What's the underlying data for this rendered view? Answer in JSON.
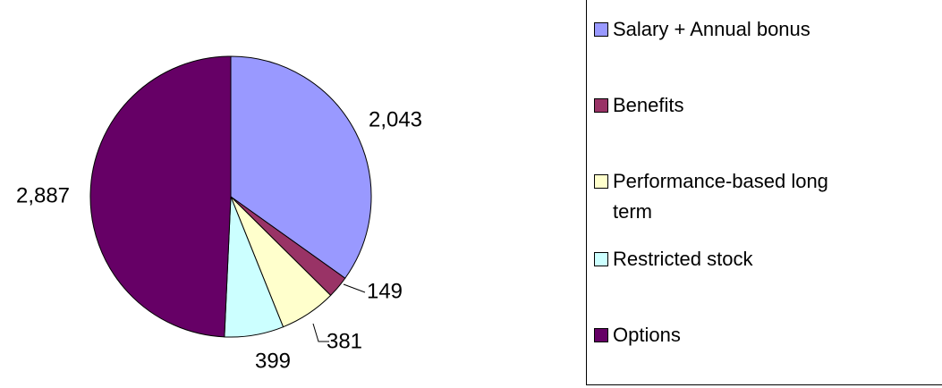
{
  "chart_data": {
    "type": "pie",
    "categories": [
      "Salary + Annual bonus",
      "Benefits",
      "Performance-based long term",
      "Restricted stock",
      "Options"
    ],
    "values": [
      2043,
      149,
      381,
      399,
      2887
    ],
    "value_labels": [
      "2,043",
      "149",
      "381",
      "399",
      "2,887"
    ],
    "colors": [
      "#9999ff",
      "#993366",
      "#ffffcc",
      "#ccffff",
      "#660066"
    ],
    "legend": "right"
  }
}
